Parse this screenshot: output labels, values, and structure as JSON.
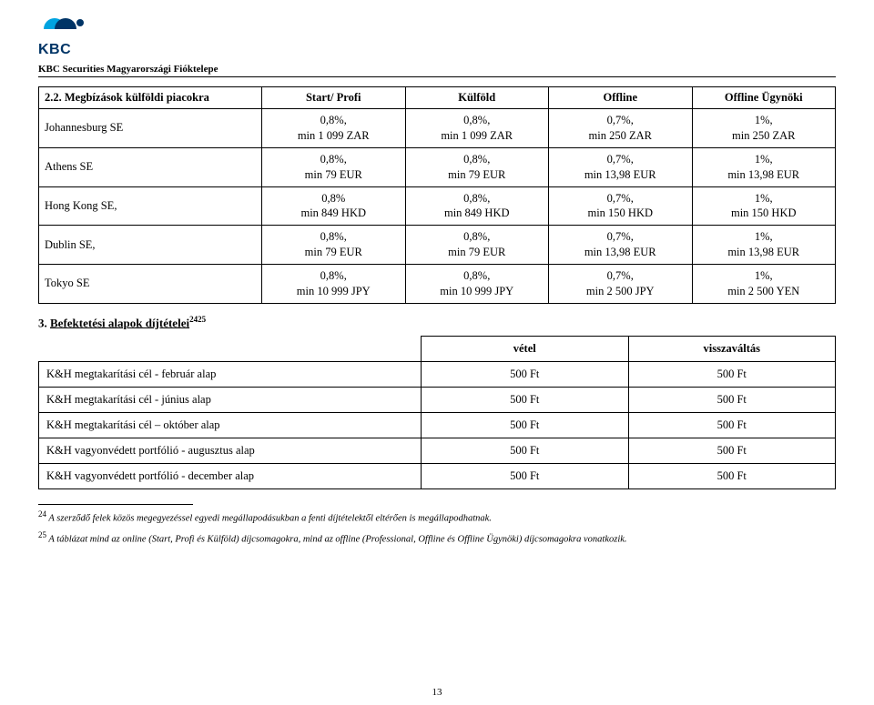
{
  "header": {
    "brand_text": "KBC",
    "branch_line": "KBC Securities Magyarországi Fióktelepe",
    "logo_colors": {
      "semicircle_left": "#00a3e0",
      "semicircle_right": "#003466",
      "dot": "#003466",
      "text": "#003466"
    }
  },
  "section1": {
    "number": "2.2.",
    "title": "Megbízások külföldi piacokra",
    "columns": [
      "Start/ Profi",
      "Külföld",
      "Offline",
      "Offline Ügynöki"
    ],
    "rows": [
      {
        "label": "Johannesburg SE",
        "cells": [
          {
            "pct": "0,8%,",
            "min": "min 1 099 ZAR"
          },
          {
            "pct": "0,8%,",
            "min": "min 1 099 ZAR"
          },
          {
            "pct": "0,7%,",
            "min": "min 250 ZAR"
          },
          {
            "pct": "1%,",
            "min": "min 250 ZAR"
          }
        ]
      },
      {
        "label": "Athens SE",
        "cells": [
          {
            "pct": "0,8%,",
            "min": "min 79 EUR"
          },
          {
            "pct": "0,8%,",
            "min": "min 79 EUR"
          },
          {
            "pct": "0,7%,",
            "min": "min 13,98 EUR"
          },
          {
            "pct": "1%,",
            "min": "min 13,98 EUR"
          }
        ]
      },
      {
        "label": "Hong Kong SE,",
        "cells": [
          {
            "pct": "0,8%",
            "min": "min 849 HKD"
          },
          {
            "pct": "0,8%,",
            "min": "min 849 HKD"
          },
          {
            "pct": "0,7%,",
            "min": "min 150 HKD"
          },
          {
            "pct": "1%,",
            "min": "min 150 HKD"
          }
        ]
      },
      {
        "label": "Dublin SE,",
        "cells": [
          {
            "pct": "0,8%,",
            "min": "min 79 EUR"
          },
          {
            "pct": "0,8%,",
            "min": "min 79 EUR"
          },
          {
            "pct": "0,7%,",
            "min": "min 13,98 EUR"
          },
          {
            "pct": "1%,",
            "min": "min 13,98 EUR"
          }
        ]
      },
      {
        "label": "Tokyo SE",
        "cells": [
          {
            "pct": "0,8%,",
            "min": "min 10 999 JPY"
          },
          {
            "pct": "0,8%,",
            "min": "min 10 999 JPY"
          },
          {
            "pct": "0,7%,",
            "min": "min 2 500 JPY"
          },
          {
            "pct": "1%,",
            "min": "min 2 500 YEN"
          }
        ]
      }
    ]
  },
  "section2": {
    "number": "3.",
    "title": "Befektetési alapok díjtételei",
    "title_sup": "2425",
    "columns": [
      "vétel",
      "visszaváltás"
    ],
    "rows": [
      {
        "label": "K&H megtakarítási cél - február alap",
        "vals": [
          "500 Ft",
          "500 Ft"
        ]
      },
      {
        "label": "K&H megtakarítási cél - június alap",
        "vals": [
          "500 Ft",
          "500 Ft"
        ]
      },
      {
        "label": "K&H megtakarítási cél – október alap",
        "vals": [
          "500 Ft",
          "500 Ft"
        ]
      },
      {
        "label": "K&H vagyonvédett portfólió - augusztus alap",
        "vals": [
          "500 Ft",
          "500 Ft"
        ]
      },
      {
        "label": "K&H vagyonvédett portfólió - december alap",
        "vals": [
          "500 Ft",
          "500 Ft"
        ]
      }
    ]
  },
  "footnotes": {
    "f24_num": "24",
    "f24_text": " A szerződő felek közös megegyezéssel egyedi megállapodásukban a fenti díjtételektől eltérően is megállapodhatnak.",
    "f25_num": "25",
    "f25_text": " A táblázat mind az online (Start, Profi és Külföld) díjcsomagokra, mind az offline (Professional, Offline és Offline Ügynöki) díjcsomagokra vonatkozik."
  },
  "page_number": "13",
  "style": {
    "font_family": "Times New Roman",
    "body_font_size_pt": 12.5,
    "heading_font_size_pt": 13,
    "footnote_font_size_pt": 10.5,
    "border_color": "#000000",
    "background_color": "#ffffff",
    "text_color": "#000000"
  }
}
